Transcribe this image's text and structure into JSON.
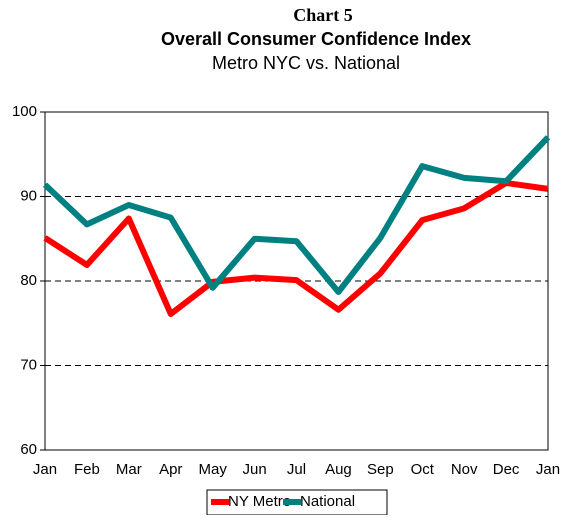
{
  "chart_data": {
    "type": "line",
    "title": "Chart 5",
    "subtitle": "Overall Consumer Confidence Index",
    "subtitle2": "Metro NYC vs. National",
    "categories": [
      "Jan",
      "Feb",
      "Mar",
      "Apr",
      "May",
      "Jun",
      "Jul",
      "Aug",
      "Sep",
      "Oct",
      "Nov",
      "Dec",
      "Jan"
    ],
    "series": [
      {
        "name": "NY Metro",
        "color": "#ff0000",
        "values": [
          85.1,
          81.9,
          87.4,
          76.1,
          79.9,
          80.4,
          80.1,
          76.6,
          80.9,
          87.2,
          88.6,
          91.6,
          90.9
        ]
      },
      {
        "name": "National",
        "color": "#008080",
        "values": [
          91.4,
          86.7,
          89.0,
          87.5,
          79.2,
          85.0,
          84.7,
          78.7,
          85.1,
          93.6,
          92.2,
          91.8,
          97.0
        ]
      }
    ],
    "ylim": [
      60,
      100
    ],
    "yticks": [
      60,
      70,
      80,
      90,
      100
    ],
    "grid": true,
    "legend": "bottom"
  }
}
